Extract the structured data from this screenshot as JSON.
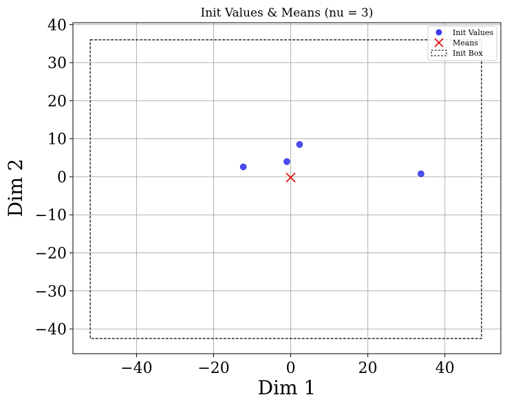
{
  "chart_data": {
    "type": "scatter",
    "title": "Init Values & Means (nu = 3)",
    "xlabel": "Dim 1",
    "ylabel": "Dim 2",
    "xlim": [
      -56.5,
      54.5
    ],
    "ylim": [
      -46.5,
      40.5
    ],
    "xticks": [
      -40,
      -20,
      0,
      20,
      40
    ],
    "yticks": [
      40,
      30,
      20,
      10,
      0,
      -10,
      -20,
      -30,
      -40
    ],
    "grid": true,
    "legend_position": "top-right",
    "series": [
      {
        "name": "Init Values",
        "kind": "points",
        "color": "#3a3af2",
        "points": [
          {
            "x": -12.3,
            "y": 2.6
          },
          {
            "x": -1.0,
            "y": 4.0
          },
          {
            "x": 2.3,
            "y": 8.5
          },
          {
            "x": 33.8,
            "y": 0.8
          }
        ]
      },
      {
        "name": "Means",
        "kind": "x-marker",
        "color": "#dd1111",
        "points": [
          {
            "x": 0.0,
            "y": -0.2
          }
        ]
      },
      {
        "name": "Init Box",
        "kind": "box",
        "color": "#000000",
        "box": {
          "x0": -52.0,
          "x1": 49.5,
          "y0": -42.5,
          "y1": 36.0
        }
      }
    ]
  }
}
